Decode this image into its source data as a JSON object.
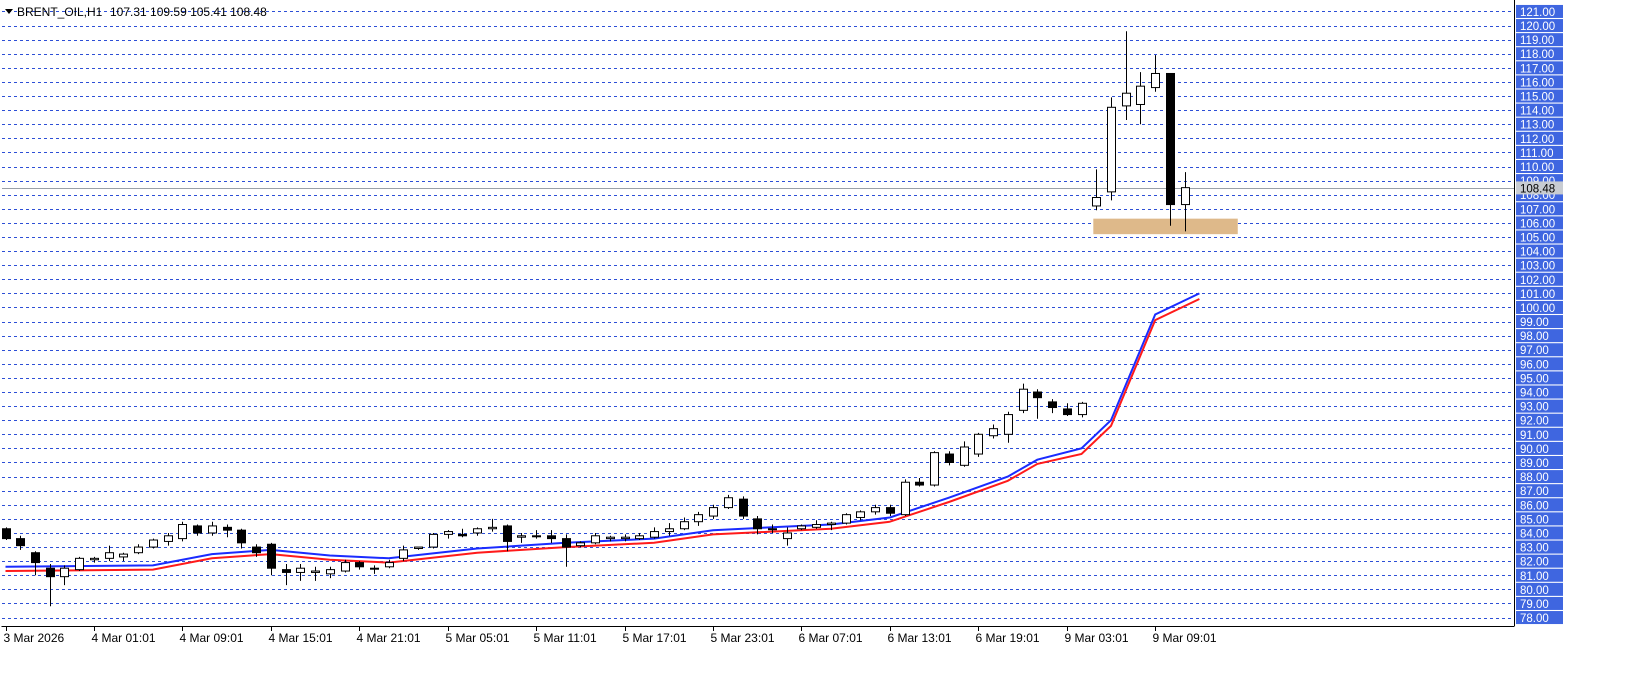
{
  "header": {
    "symbol": "BRENT_OIL,H1",
    "ohlc": "107.31 109.59 105.41 108.48"
  },
  "colors": {
    "background": "#ffffff",
    "grid": "#2d4fd6",
    "axis_label_bg": "#3f66e0",
    "axis_label_text": "#ffffff",
    "bull_body": "#ffffff",
    "bear_body": "#000000",
    "wick": "#000000",
    "ma_fast": "#1a2bff",
    "ma_slow": "#ff1a1a",
    "zone": "#deb98a"
  },
  "chart_data": {
    "type": "candlestick",
    "ylim": [
      77.4,
      121.6
    ],
    "grid": true,
    "y_ticks": [
      "78.00",
      "79.00",
      "80.00",
      "81.00",
      "82.00",
      "83.00",
      "84.00",
      "85.00",
      "86.00",
      "87.00",
      "88.00",
      "89.00",
      "90.00",
      "91.00",
      "92.00",
      "93.00",
      "94.00",
      "95.00",
      "96.00",
      "97.00",
      "98.00",
      "99.00",
      "100.00",
      "101.00",
      "102.00",
      "103.00",
      "104.00",
      "105.00",
      "106.00",
      "107.00",
      "108.00",
      "109.00",
      "110.00",
      "111.00",
      "112.00",
      "113.00",
      "114.00",
      "115.00",
      "116.00",
      "117.00",
      "118.00",
      "119.00",
      "120.00",
      "121.00"
    ],
    "current_price": "108.48",
    "x_labels": [
      {
        "label": "3 Mar 2026",
        "index": 0
      },
      {
        "label": "4 Mar 01:01",
        "index": 6
      },
      {
        "label": "4 Mar 09:01",
        "index": 12
      },
      {
        "label": "4 Mar 15:01",
        "index": 18
      },
      {
        "label": "4 Mar 21:01",
        "index": 24
      },
      {
        "label": "5 Mar 05:01",
        "index": 30
      },
      {
        "label": "5 Mar 11:01",
        "index": 36
      },
      {
        "label": "5 Mar 17:01",
        "index": 42
      },
      {
        "label": "5 Mar 23:01",
        "index": 48
      },
      {
        "label": "6 Mar 07:01",
        "index": 54
      },
      {
        "label": "6 Mar 13:01",
        "index": 60
      },
      {
        "label": "6 Mar 19:01",
        "index": 66
      },
      {
        "label": "9 Mar 03:01",
        "index": 72
      },
      {
        "label": "9 Mar 09:01",
        "index": 78
      }
    ],
    "candles": [
      [
        84.3,
        84.4,
        83.5,
        83.6
      ],
      [
        83.6,
        83.8,
        82.8,
        83.1
      ],
      [
        82.6,
        82.7,
        81.0,
        81.9
      ],
      [
        81.5,
        81.8,
        78.8,
        80.9
      ],
      [
        80.9,
        81.7,
        80.3,
        81.5
      ],
      [
        81.4,
        82.3,
        81.3,
        82.2
      ],
      [
        82.1,
        82.3,
        81.9,
        82.2
      ],
      [
        82.2,
        83.1,
        82.0,
        82.6
      ],
      [
        82.3,
        82.6,
        82.0,
        82.5
      ],
      [
        82.6,
        83.2,
        82.5,
        83.0
      ],
      [
        83.0,
        83.6,
        82.9,
        83.5
      ],
      [
        83.4,
        84.0,
        83.1,
        83.8
      ],
      [
        83.6,
        84.8,
        83.4,
        84.6
      ],
      [
        84.5,
        84.6,
        83.8,
        84.0
      ],
      [
        84.0,
        84.8,
        83.8,
        84.5
      ],
      [
        84.4,
        84.6,
        83.7,
        84.2
      ],
      [
        84.2,
        84.3,
        82.9,
        83.3
      ],
      [
        83.0,
        83.2,
        82.3,
        82.6
      ],
      [
        83.2,
        83.3,
        81.0,
        81.5
      ],
      [
        81.4,
        81.8,
        80.3,
        81.2
      ],
      [
        81.2,
        81.8,
        80.6,
        81.5
      ],
      [
        81.2,
        81.6,
        80.6,
        81.3
      ],
      [
        81.1,
        81.6,
        80.8,
        81.4
      ],
      [
        81.3,
        82.1,
        81.2,
        81.9
      ],
      [
        81.9,
        82.0,
        81.4,
        81.6
      ],
      [
        81.5,
        81.7,
        81.1,
        81.5
      ],
      [
        81.6,
        82.1,
        81.5,
        81.9
      ],
      [
        82.2,
        83.1,
        82.0,
        82.8
      ],
      [
        82.9,
        83.0,
        82.8,
        83.0
      ],
      [
        83.0,
        84.0,
        82.9,
        83.9
      ],
      [
        83.9,
        84.2,
        83.6,
        84.1
      ],
      [
        83.9,
        84.3,
        83.7,
        83.8
      ],
      [
        84.0,
        84.4,
        83.8,
        84.3
      ],
      [
        84.3,
        85.0,
        84.1,
        84.4
      ],
      [
        84.5,
        84.6,
        82.7,
        83.4
      ],
      [
        83.7,
        84.0,
        83.3,
        83.8
      ],
      [
        83.8,
        84.2,
        83.6,
        83.8
      ],
      [
        83.8,
        84.2,
        83.3,
        83.6
      ],
      [
        83.6,
        83.9,
        81.6,
        83.0
      ],
      [
        83.1,
        83.4,
        83.0,
        83.3
      ],
      [
        83.3,
        84.0,
        83.2,
        83.8
      ],
      [
        83.6,
        83.8,
        83.4,
        83.7
      ],
      [
        83.6,
        83.9,
        83.4,
        83.7
      ],
      [
        83.6,
        84.0,
        83.5,
        83.8
      ],
      [
        83.7,
        84.4,
        83.6,
        84.1
      ],
      [
        84.1,
        84.7,
        83.8,
        84.3
      ],
      [
        84.3,
        85.1,
        84.2,
        84.8
      ],
      [
        84.8,
        85.5,
        84.5,
        85.3
      ],
      [
        85.2,
        86.0,
        85.0,
        85.8
      ],
      [
        85.8,
        86.7,
        85.7,
        86.5
      ],
      [
        86.4,
        86.6,
        85.0,
        85.2
      ],
      [
        85.0,
        85.2,
        83.9,
        84.3
      ],
      [
        84.3,
        84.6,
        84.0,
        84.3
      ],
      [
        83.6,
        84.4,
        83.1,
        84.0
      ],
      [
        84.3,
        84.6,
        84.2,
        84.5
      ],
      [
        84.4,
        84.9,
        84.3,
        84.6
      ],
      [
        84.6,
        84.8,
        84.2,
        84.7
      ],
      [
        84.7,
        85.4,
        84.6,
        85.3
      ],
      [
        85.1,
        85.6,
        84.9,
        85.5
      ],
      [
        85.5,
        86.0,
        85.3,
        85.8
      ],
      [
        85.8,
        86.0,
        85.2,
        85.4
      ],
      [
        85.3,
        87.8,
        85.2,
        87.6
      ],
      [
        87.6,
        87.9,
        87.3,
        87.4
      ],
      [
        87.4,
        89.8,
        87.3,
        89.7
      ],
      [
        89.6,
        89.8,
        88.8,
        89.0
      ],
      [
        88.8,
        90.5,
        88.7,
        90.1
      ],
      [
        89.6,
        91.1,
        89.4,
        91.0
      ],
      [
        90.9,
        91.7,
        90.7,
        91.4
      ],
      [
        91.0,
        92.6,
        90.4,
        92.4
      ],
      [
        92.7,
        94.6,
        92.5,
        94.2
      ],
      [
        94.0,
        94.2,
        92.1,
        93.6
      ],
      [
        93.3,
        93.5,
        92.5,
        92.9
      ],
      [
        92.8,
        93.2,
        92.3,
        92.4
      ],
      [
        92.4,
        93.3,
        92.2,
        93.2
      ],
      [
        107.2,
        109.8,
        106.9,
        107.8
      ],
      [
        108.2,
        114.9,
        107.6,
        114.2
      ],
      [
        114.3,
        119.6,
        113.3,
        115.2
      ],
      [
        114.4,
        116.7,
        113.0,
        115.7
      ],
      [
        115.6,
        117.9,
        115.3,
        116.6
      ],
      [
        116.6,
        116.6,
        105.8,
        107.3
      ],
      [
        107.3,
        109.6,
        105.4,
        108.5
      ]
    ],
    "ma_fast": [
      [
        0,
        81.6
      ],
      [
        10,
        81.7
      ],
      [
        14,
        82.5
      ],
      [
        18,
        82.8
      ],
      [
        22,
        82.4
      ],
      [
        26,
        82.2
      ],
      [
        32,
        82.9
      ],
      [
        38,
        83.3
      ],
      [
        44,
        83.6
      ],
      [
        48,
        84.2
      ],
      [
        52,
        84.4
      ],
      [
        56,
        84.6
      ],
      [
        60,
        85.1
      ],
      [
        64,
        86.5
      ],
      [
        68,
        88.0
      ],
      [
        70,
        89.2
      ],
      [
        73,
        90.0
      ],
      [
        75,
        92.0
      ],
      [
        78,
        99.5
      ],
      [
        81,
        101.0
      ]
    ],
    "ma_slow": [
      [
        0,
        81.3
      ],
      [
        10,
        81.4
      ],
      [
        14,
        82.2
      ],
      [
        18,
        82.5
      ],
      [
        22,
        82.1
      ],
      [
        26,
        81.9
      ],
      [
        32,
        82.6
      ],
      [
        38,
        83.0
      ],
      [
        44,
        83.3
      ],
      [
        48,
        83.9
      ],
      [
        52,
        84.1
      ],
      [
        56,
        84.3
      ],
      [
        60,
        84.8
      ],
      [
        64,
        86.2
      ],
      [
        68,
        87.7
      ],
      [
        70,
        88.9
      ],
      [
        73,
        89.6
      ],
      [
        75,
        91.6
      ],
      [
        78,
        99.1
      ],
      [
        81,
        100.6
      ]
    ],
    "zone": {
      "from_index": 73.8,
      "to_index": 83.6,
      "low": 105.2,
      "high": 106.3
    }
  }
}
